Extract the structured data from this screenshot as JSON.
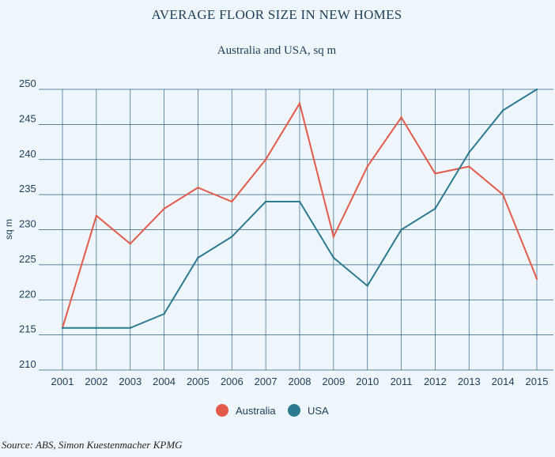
{
  "chart_data": {
    "type": "line",
    "title": "AVERAGE FLOOR SIZE IN NEW HOMES",
    "subtitle": "Australia and USA, sq m",
    "xlabel": "",
    "ylabel": "sq m",
    "x": [
      2001,
      2002,
      2003,
      2004,
      2005,
      2006,
      2007,
      2008,
      2009,
      2010,
      2011,
      2012,
      2013,
      2014,
      2015
    ],
    "ylim": [
      210,
      250
    ],
    "yticks": [
      210,
      215,
      220,
      225,
      230,
      235,
      240,
      245,
      250
    ],
    "grid": true,
    "legend": "bottom-center",
    "series": [
      {
        "name": "Australia",
        "color": "#e35a4b",
        "values": [
          216,
          232,
          228,
          233,
          236,
          234,
          240,
          248,
          229,
          239,
          246,
          238,
          239,
          235,
          223
        ]
      },
      {
        "name": "USA",
        "color": "#2b7a8f",
        "values": [
          216,
          216,
          216,
          218,
          226,
          229,
          234,
          234,
          226,
          222,
          230,
          233,
          241,
          247,
          250
        ]
      }
    ]
  },
  "source": "Source: ABS, Simon Kuestenmacher KPMG"
}
